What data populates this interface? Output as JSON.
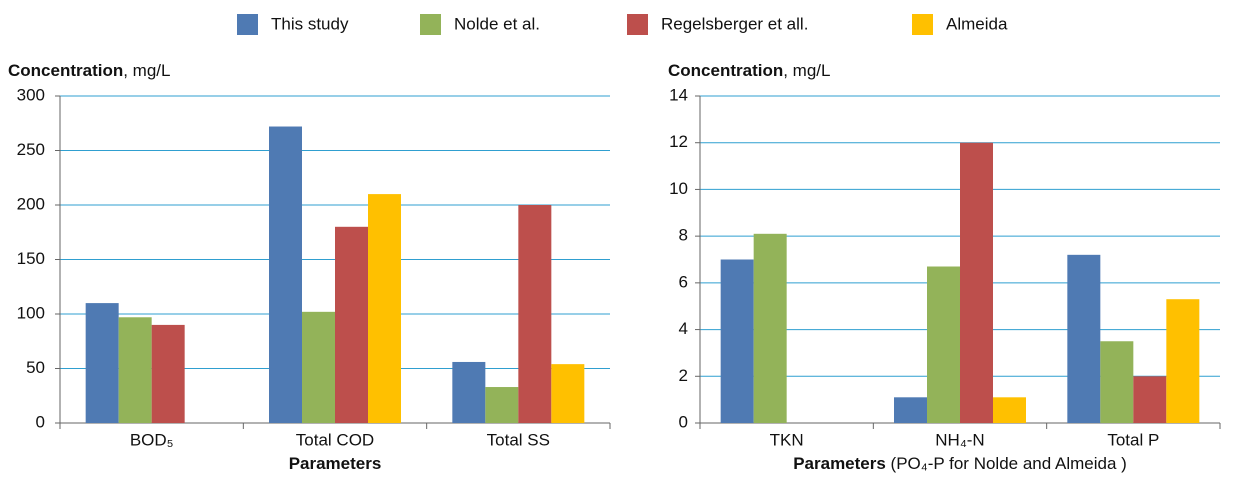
{
  "chart_data": [
    {
      "type": "bar",
      "y_label": {
        "bold": "Concentration",
        "rest": ", mg/L"
      },
      "x_label": {
        "bold": "Parameters"
      },
      "categories": [
        "BOD₅",
        "Total COD",
        "Total SS"
      ],
      "series": [
        {
          "name": "This study",
          "color": "#4f7ab3",
          "values": [
            110,
            272,
            56
          ]
        },
        {
          "name": "Nolde et al.",
          "color": "#93b359",
          "values": [
            97,
            102,
            33
          ]
        },
        {
          "name": "Regelsberger et all.",
          "color": "#bd4f4c",
          "values": [
            90,
            180,
            200
          ]
        },
        {
          "name": "Almeida",
          "color": "#ffc000",
          "values": [
            null,
            210,
            54
          ]
        }
      ],
      "ylim": [
        0,
        300
      ],
      "yticks": [
        0,
        50,
        100,
        150,
        200,
        250,
        300
      ],
      "grid": true
    },
    {
      "type": "bar",
      "y_label": {
        "bold": "Concentration",
        "rest": ", mg/L"
      },
      "x_label": {
        "bold": "Parameters",
        "rest": " (PO₄-P for Nolde and Almeida )"
      },
      "categories": [
        "TKN",
        "NH₄-N",
        "Total P"
      ],
      "series": [
        {
          "name": "This study",
          "color": "#4f7ab3",
          "values": [
            7.0,
            1.1,
            7.2
          ]
        },
        {
          "name": "Nolde et al.",
          "color": "#93b359",
          "values": [
            8.1,
            6.7,
            3.5
          ]
        },
        {
          "name": "Regelsberger et all.",
          "color": "#bd4f4c",
          "values": [
            null,
            12,
            2.0
          ]
        },
        {
          "name": "Almeida",
          "color": "#ffc000",
          "values": [
            null,
            1.1,
            5.3
          ]
        }
      ],
      "ylim": [
        0,
        14
      ],
      "yticks": [
        0,
        2,
        4,
        6,
        8,
        10,
        12,
        14
      ],
      "grid": true
    }
  ]
}
